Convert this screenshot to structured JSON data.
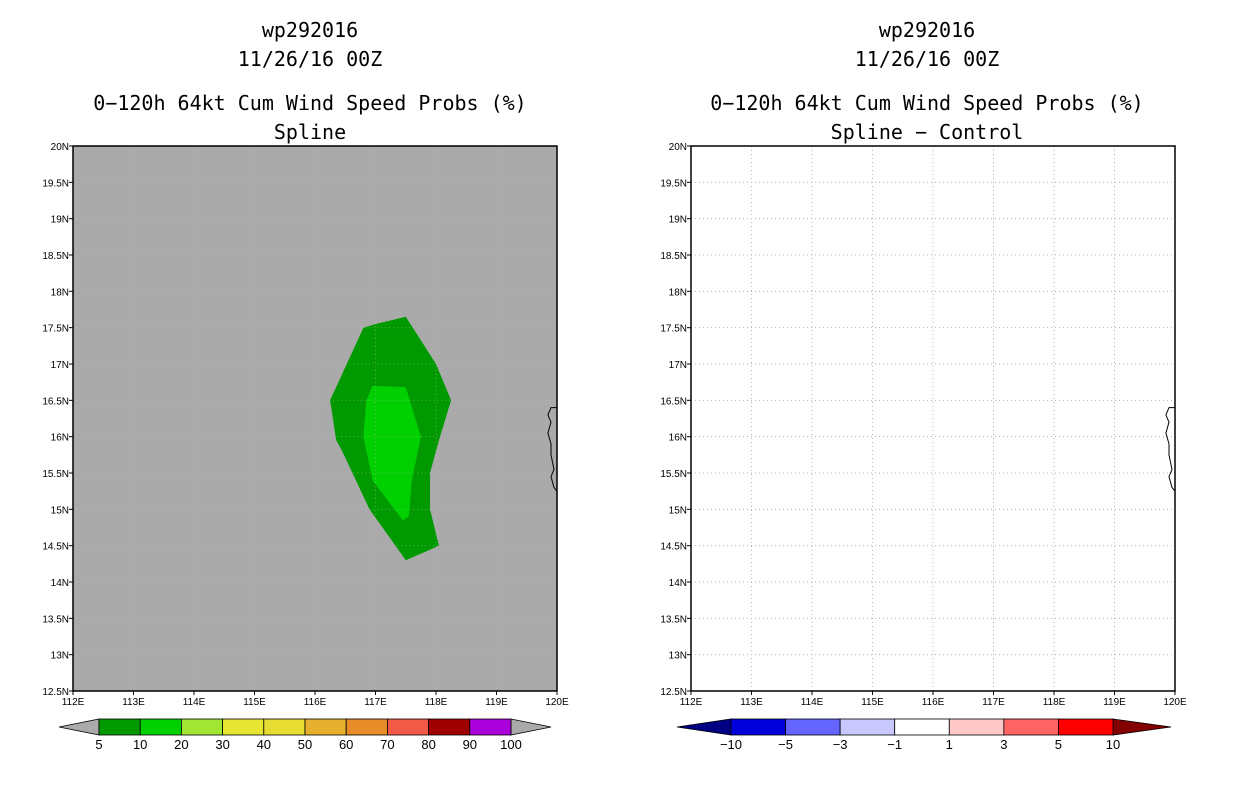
{
  "chart_data": [
    {
      "type": "contour-map",
      "storm_id": "wp292016",
      "datetime": "11/26/16 00Z",
      "title": "0−120h 64kt Cum Wind Speed Probs (%)",
      "subtitle": "Spline",
      "xlim": [
        112,
        120
      ],
      "ylim": [
        12.5,
        20
      ],
      "xticks": [
        "112E",
        "113E",
        "114E",
        "115E",
        "116E",
        "117E",
        "118E",
        "119E",
        "120E"
      ],
      "yticks": [
        "12.5N",
        "13N",
        "13.5N",
        "14N",
        "14.5N",
        "15N",
        "15.5N",
        "16N",
        "16.5N",
        "17N",
        "17.5N",
        "18N",
        "18.5N",
        "19N",
        "19.5N",
        "20N"
      ],
      "background": "#aaaaaa",
      "contours": [
        {
          "level": "5-10",
          "color": "#009a00",
          "lonlat": [
            [
              117.5,
              17.65
            ],
            [
              117.0,
              17.55
            ],
            [
              116.8,
              17.5
            ],
            [
              116.25,
              16.5
            ],
            [
              116.35,
              15.95
            ],
            [
              116.45,
              15.8
            ],
            [
              116.9,
              15.0
            ],
            [
              117.5,
              14.3
            ],
            [
              118.05,
              14.5
            ],
            [
              117.9,
              15.0
            ],
            [
              117.9,
              15.5
            ],
            [
              118.05,
              15.95
            ],
            [
              118.25,
              16.5
            ],
            [
              118.0,
              17.0
            ],
            [
              117.5,
              17.65
            ]
          ]
        },
        {
          "level": "10-20",
          "color": "#00d000",
          "lonlat": [
            [
              116.95,
              16.7
            ],
            [
              117.5,
              16.68
            ],
            [
              117.75,
              16.0
            ],
            [
              117.6,
              15.4
            ],
            [
              117.55,
              14.9
            ],
            [
              117.45,
              14.85
            ],
            [
              116.95,
              15.4
            ],
            [
              116.8,
              16.0
            ],
            [
              116.85,
              16.5
            ],
            [
              116.95,
              16.7
            ]
          ]
        }
      ],
      "coastline_lonlat": [
        [
          120,
          16.4
        ],
        [
          119.9,
          16.4
        ],
        [
          119.85,
          16.3
        ],
        [
          119.9,
          16.2
        ],
        [
          119.85,
          16.05
        ],
        [
          119.9,
          15.9
        ],
        [
          119.9,
          15.75
        ],
        [
          119.95,
          15.55
        ],
        [
          119.9,
          15.45
        ],
        [
          119.95,
          15.3
        ],
        [
          120,
          15.25
        ]
      ],
      "colorbar": {
        "labels": [
          "5",
          "10",
          "20",
          "30",
          "40",
          "50",
          "60",
          "70",
          "80",
          "90",
          "100"
        ],
        "colors": [
          "#009a00",
          "#00d000",
          "#a0e632",
          "#e6e632",
          "#e6dc32",
          "#e6af2d",
          "#e68c28",
          "#f05a46",
          "#a00000",
          "#aa00dc"
        ],
        "end_color": "#aaaaaa"
      }
    },
    {
      "type": "contour-map",
      "storm_id": "wp292016",
      "datetime": "11/26/16 00Z",
      "title": "0−120h 64kt Cum Wind Speed Probs (%)",
      "subtitle": "Spline − Control",
      "xlim": [
        112,
        120
      ],
      "ylim": [
        12.5,
        20
      ],
      "xticks": [
        "112E",
        "113E",
        "114E",
        "115E",
        "116E",
        "117E",
        "118E",
        "119E",
        "120E"
      ],
      "yticks": [
        "12.5N",
        "13N",
        "13.5N",
        "14N",
        "14.5N",
        "15N",
        "15.5N",
        "16N",
        "16.5N",
        "17N",
        "17.5N",
        "18N",
        "18.5N",
        "19N",
        "19.5N",
        "20N"
      ],
      "background": "#ffffff",
      "grid": true,
      "contours": [],
      "coastline_lonlat": [
        [
          120,
          16.4
        ],
        [
          119.9,
          16.4
        ],
        [
          119.85,
          16.3
        ],
        [
          119.9,
          16.2
        ],
        [
          119.85,
          16.05
        ],
        [
          119.9,
          15.9
        ],
        [
          119.9,
          15.75
        ],
        [
          119.95,
          15.55
        ],
        [
          119.9,
          15.45
        ],
        [
          119.95,
          15.3
        ],
        [
          120,
          15.25
        ]
      ],
      "colorbar": {
        "labels": [
          "−10",
          "−5",
          "−3",
          "−1",
          "1",
          "3",
          "5",
          "10"
        ],
        "colors": [
          "#0000dc",
          "#6464ff",
          "#c8c8ff",
          "#ffffff",
          "#ffc8c8",
          "#ff6464",
          "#ff0000"
        ],
        "end_left": "#000082",
        "end_right": "#820000"
      }
    }
  ]
}
